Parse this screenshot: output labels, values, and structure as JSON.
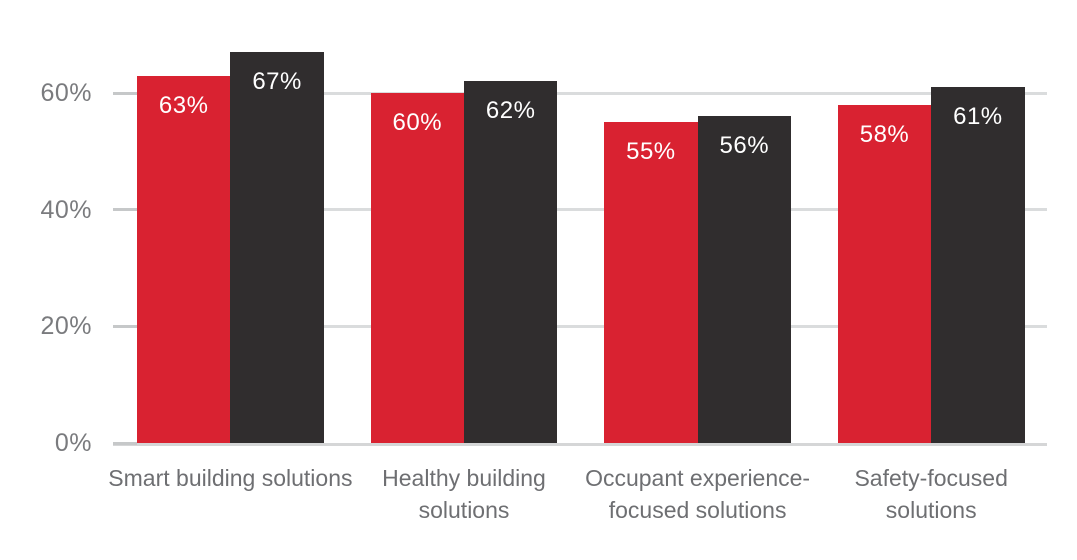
{
  "chart": {
    "background": "#ffffff",
    "colors": {
      "red_bar": "#d92231",
      "dark_bar": "#302d2e",
      "grid_line": "#dadcdd",
      "tick_mark": "#c6c8c9",
      "axis_label": "#7a7b7e",
      "category_label": "#6e6f72",
      "value_label": "#ffffff"
    }
  },
  "chart_data": {
    "type": "bar",
    "categories": [
      "Smart building solutions",
      "Healthy building solutions",
      "Occupant experience-focused solutions",
      "Safety-focused solutions"
    ],
    "series": [
      {
        "name": "red-bars",
        "color": "#d92231",
        "values": [
          63,
          60,
          55,
          58
        ],
        "labels": [
          "63%",
          "60%",
          "55%",
          "58%"
        ]
      },
      {
        "name": "dark-bars",
        "color": "#302d2e",
        "values": [
          67,
          62,
          56,
          61
        ],
        "labels": [
          "67%",
          "62%",
          "56%",
          "61%"
        ]
      }
    ],
    "y_axis": {
      "ticks": [
        {
          "value": 0,
          "label": "0%"
        },
        {
          "value": 20,
          "label": "20%"
        },
        {
          "value": 40,
          "label": "40%"
        },
        {
          "value": 60,
          "label": "60%"
        }
      ],
      "range": [
        0,
        75
      ]
    },
    "grid": true,
    "legend": false,
    "title": ""
  }
}
